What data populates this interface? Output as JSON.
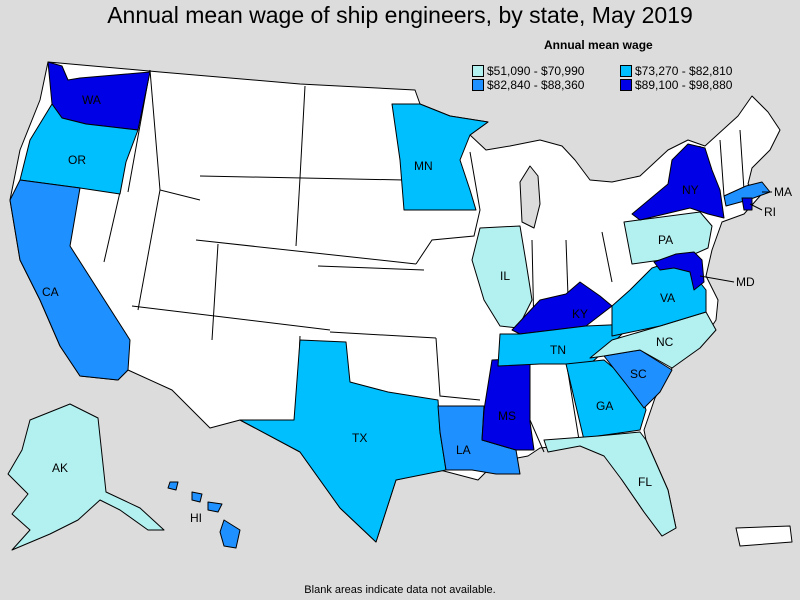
{
  "title": "Annual mean wage of ship engineers, by state, May 2019",
  "legend": {
    "title": "Annual mean wage",
    "items": [
      {
        "label": "$51,090 - $70,990",
        "color": "#b3f0f0"
      },
      {
        "label": "$73,270 - $82,810",
        "color": "#00bfff"
      },
      {
        "label": "$82,840 - $88,360",
        "color": "#1e90ff"
      },
      {
        "label": "$89,100 - $98,880",
        "color": "#0000e6"
      }
    ]
  },
  "footnote": "Blank areas indicate data not available.",
  "colors": {
    "no_data": "#ffffff",
    "lakes": "#dcdcdc",
    "border": "#000000"
  },
  "states": {
    "WA": {
      "label": "WA",
      "class": 4
    },
    "OR": {
      "label": "OR",
      "class": 2
    },
    "CA": {
      "label": "CA",
      "class": 3
    },
    "AK": {
      "label": "AK",
      "class": 1
    },
    "HI": {
      "label": "HI",
      "class": 3
    },
    "MN": {
      "label": "MN",
      "class": 2
    },
    "TX": {
      "label": "TX",
      "class": 2
    },
    "LA": {
      "label": "LA",
      "class": 3
    },
    "MS": {
      "label": "MS",
      "class": 4
    },
    "IL": {
      "label": "IL",
      "class": 1
    },
    "KY": {
      "label": "KY",
      "class": 4
    },
    "TN": {
      "label": "TN",
      "class": 2
    },
    "GA": {
      "label": "GA",
      "class": 2
    },
    "SC": {
      "label": "SC",
      "class": 3
    },
    "NC": {
      "label": "NC",
      "class": 1
    },
    "VA": {
      "label": "VA",
      "class": 2
    },
    "FL": {
      "label": "FL",
      "class": 1
    },
    "PA": {
      "label": "PA",
      "class": 1
    },
    "NY": {
      "label": "NY",
      "class": 4
    },
    "MA": {
      "label": "MA",
      "class": 3
    },
    "RI": {
      "label": "RI",
      "class": 4
    },
    "MD": {
      "label": "MD",
      "class": 4
    }
  }
}
